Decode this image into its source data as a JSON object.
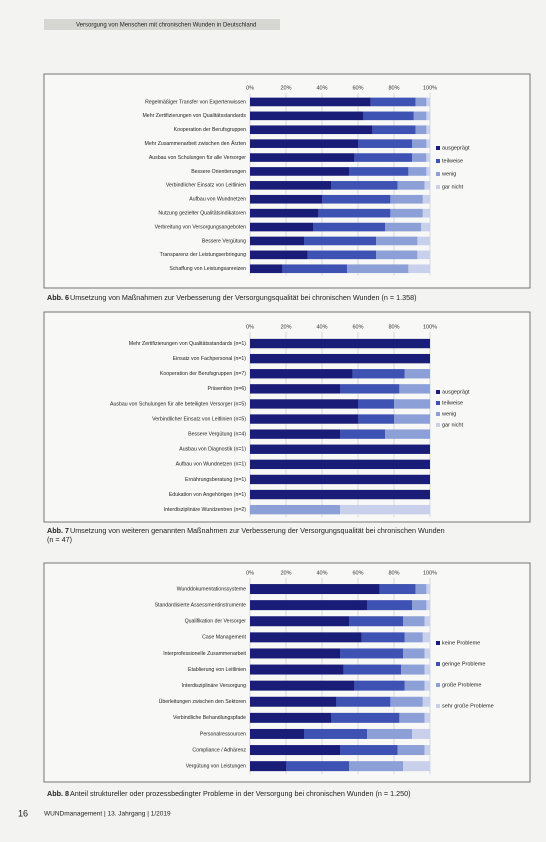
{
  "header": {
    "title": "Versorgung von Menschen mit chronischen Wunden in Deutschland"
  },
  "footer": {
    "page": "16",
    "journal": "WUNDmanagement | 13. Jahrgang | 1/2019"
  },
  "chart_data": [
    {
      "type": "bar",
      "orientation": "horizontal",
      "stacked": true,
      "figure_label": "Abb. 6",
      "title": "Umsetzung von Maßnahmen zur Verbesserung der Versorgungsqualität bei chronischen Wunden (n = 1.358)",
      "categories": [
        "Regelmäßiger Transfer von Expertenwissen",
        "Mehr Zertifizierungen von Qualitätsstandards",
        "Kooperation der Berufsgruppen",
        "Mehr Zusammenarbeit zwischen den Ärzten",
        "Ausbau von Schulungen für alle Versorger",
        "Bessere Orientierungen",
        "Verbindlicher Einsatz von Leitlinien",
        "Aufbau von Wundnetzen",
        "Nutzung gezielter Qualitätsindikatoren",
        "Verbreitung von Versorgungsangeboten",
        "Bessere Vergütung",
        "Transparenz der Leistungserbringung",
        "Schaffung von Leistungsanreizen"
      ],
      "series": [
        {
          "name": "ausgeprägt",
          "color": "#1a1d78",
          "values": [
            67,
            63,
            68,
            60,
            58,
            55,
            45,
            40,
            38,
            35,
            30,
            32,
            18
          ]
        },
        {
          "name": "teilweise",
          "color": "#3e52b3",
          "values": [
            25,
            28,
            24,
            30,
            32,
            33,
            37,
            38,
            40,
            40,
            40,
            38,
            36
          ]
        },
        {
          "name": "wenig",
          "color": "#8c9fd6",
          "values": [
            6,
            7,
            6,
            8,
            8,
            10,
            15,
            18,
            18,
            20,
            23,
            23,
            34
          ]
        },
        {
          "name": "gar nicht",
          "color": "#c9d0ec",
          "values": [
            2,
            2,
            2,
            2,
            2,
            2,
            3,
            4,
            4,
            5,
            7,
            7,
            12
          ]
        }
      ],
      "xlim": [
        0,
        100
      ],
      "xticks": [
        {
          "value": 0,
          "label": "0%"
        },
        {
          "value": 20,
          "label": "20%"
        },
        {
          "value": 40,
          "label": "40%"
        },
        {
          "value": 60,
          "label": "60%"
        },
        {
          "value": 80,
          "label": "80%"
        },
        {
          "value": 100,
          "label": "100%"
        }
      ],
      "grid": true,
      "legend": "right"
    },
    {
      "type": "bar",
      "orientation": "horizontal",
      "stacked": true,
      "figure_label": "Abb. 7",
      "title": "Umsetzung von weiteren genannten Maßnahmen zur Verbesserung der Versorgungsqualität bei chronischen Wunden (n = 47)",
      "categories": [
        "Mehr Zertifizierungen von Qualitätsstandards (n=1)",
        "Einsatz von Fachpersonal (n=1)",
        "Kooperation der Berufsgruppen (n=7)",
        "Prävention (n=6)",
        "Ausbau von Schulungen für alle beteiligten Versorger (n=5)",
        "Verbindlicher Einsatz von Leitlinien (n=5)",
        "Bessere Vergütung (n=4)",
        "Ausbau von Diagnostik (n=1)",
        "Aufbau von Wundnetzen (n=1)",
        "Ernährungsberatung (n=1)",
        "Edukation von Angehörigen (n=1)",
        "Interdisziplinäre Wundzentren (n=2)"
      ],
      "series": [
        {
          "name": "ausgeprägt",
          "color": "#1a1d78",
          "values": [
            100,
            100,
            57,
            50,
            60,
            60,
            50,
            100,
            100,
            100,
            100,
            0
          ]
        },
        {
          "name": "teilweise",
          "color": "#3e52b3",
          "values": [
            0,
            0,
            29,
            33,
            20,
            20,
            25,
            0,
            0,
            0,
            0,
            0
          ]
        },
        {
          "name": "wenig",
          "color": "#8c9fd6",
          "values": [
            0,
            0,
            14,
            17,
            20,
            20,
            25,
            0,
            0,
            0,
            0,
            50
          ]
        },
        {
          "name": "gar nicht",
          "color": "#c9d0ec",
          "values": [
            0,
            0,
            0,
            0,
            0,
            0,
            0,
            0,
            0,
            0,
            0,
            50
          ]
        }
      ],
      "xlim": [
        0,
        100
      ],
      "xticks": [
        {
          "value": 0,
          "label": "0%"
        },
        {
          "value": 20,
          "label": "20%"
        },
        {
          "value": 40,
          "label": "40%"
        },
        {
          "value": 60,
          "label": "60%"
        },
        {
          "value": 80,
          "label": "80%"
        },
        {
          "value": 100,
          "label": "100%"
        }
      ],
      "grid": true,
      "legend": "right"
    },
    {
      "type": "bar",
      "orientation": "horizontal",
      "stacked": true,
      "figure_label": "Abb. 8",
      "title": "Anteil struktureller oder prozessbedingter Probleme in der Versorgung bei chronischen Wunden (n = 1.250)",
      "categories": [
        "Wunddokumentationssysteme",
        "Standardisierte Assessmentinstrumente",
        "Qualifikation der Versorger",
        "Case Management",
        "Interprofessionelle Zusammenarbeit",
        "Etablierung von Leitlinien",
        "Interdisziplinäre Versorgung",
        "Überleitungen zwischen den Sektoren",
        "Verbindliche Behandlungspfade",
        "Personalressourcen",
        "Compliance / Adhärenz",
        "Vergütung von Leistungen"
      ],
      "series": [
        {
          "name": "keine Probleme",
          "color": "#1a1d78",
          "values": [
            72,
            65,
            55,
            62,
            50,
            52,
            58,
            48,
            45,
            30,
            50,
            20
          ]
        },
        {
          "name": "geringe Probleme",
          "color": "#3e52b3",
          "values": [
            20,
            25,
            30,
            24,
            35,
            32,
            28,
            30,
            38,
            35,
            32,
            35
          ]
        },
        {
          "name": "große Probleme",
          "color": "#8c9fd6",
          "values": [
            6,
            8,
            12,
            10,
            12,
            13,
            11,
            18,
            14,
            25,
            15,
            30
          ]
        },
        {
          "name": "sehr große Probleme",
          "color": "#c9d0ec",
          "values": [
            2,
            2,
            3,
            4,
            3,
            3,
            3,
            4,
            3,
            10,
            3,
            15
          ]
        }
      ],
      "xlim": [
        0,
        100
      ],
      "xticks": [
        {
          "value": 0,
          "label": "0%"
        },
        {
          "value": 20,
          "label": "20%"
        },
        {
          "value": 40,
          "label": "40%"
        },
        {
          "value": 60,
          "label": "60%"
        },
        {
          "value": 80,
          "label": "80%"
        },
        {
          "value": 100,
          "label": "100%"
        }
      ],
      "grid": true,
      "legend": "right"
    }
  ]
}
